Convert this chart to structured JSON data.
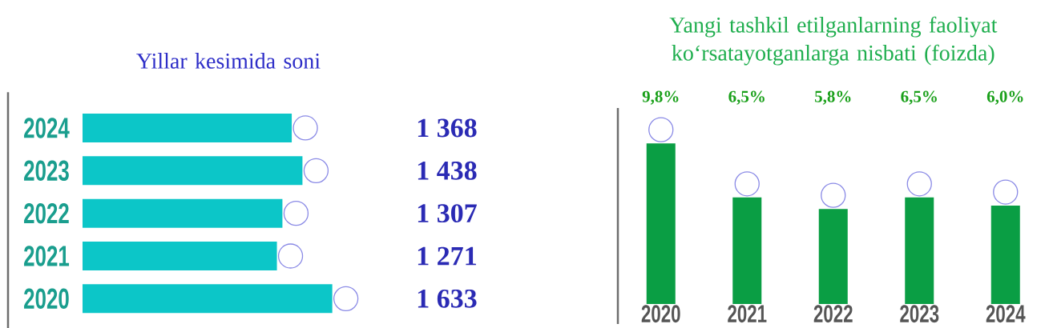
{
  "chart_data": [
    {
      "type": "bar",
      "orientation": "horizontal",
      "title": "Yillar kesimida soni",
      "categories": [
        "2024",
        "2023",
        "2022",
        "2021",
        "2020"
      ],
      "values": [
        1368,
        1438,
        1307,
        1271,
        1633
      ],
      "value_labels": [
        "1 368",
        "1 438",
        "1 307",
        "1 271",
        "1 633"
      ],
      "color": "#0cc6c8"
    },
    {
      "type": "bar",
      "title": "Yangi tashkil etilganlarning faoliyat ko‘rsatayotganlarga nisbati (foizda)",
      "categories": [
        "2020",
        "2021",
        "2022",
        "2023",
        "2024"
      ],
      "values": [
        9.8,
        6.5,
        5.8,
        6.5,
        6.0
      ],
      "value_labels": [
        "9,8%",
        "6,5%",
        "5,8%",
        "6,5%",
        "6,0%"
      ],
      "color": "#0a9e44"
    }
  ]
}
